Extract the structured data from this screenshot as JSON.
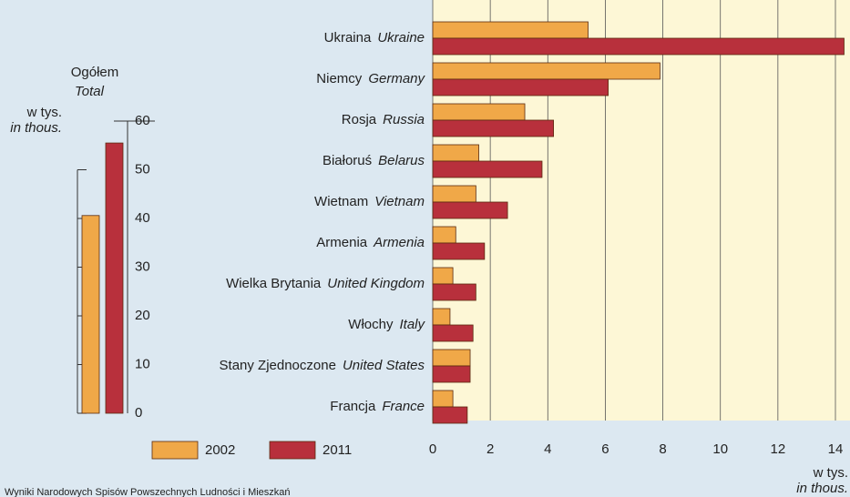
{
  "chart_data": [
    {
      "type": "bar",
      "title": "Ogółem",
      "subtitle": "Total",
      "y_label": "w tys.",
      "y_label_en": "in thous.",
      "categories": [
        null
      ],
      "series": [
        {
          "name": "2002",
          "color": "#f0a848",
          "values": [
            40.6
          ]
        },
        {
          "name": "2011",
          "color": "#b8303c",
          "values": [
            55.5
          ]
        }
      ],
      "ylim": [
        0,
        60
      ],
      "yticks": [
        0,
        10,
        20,
        30,
        40,
        50,
        60
      ]
    },
    {
      "type": "hbar",
      "x_label": "w tys.",
      "x_label_en": "in thous.",
      "categories": [
        "Ukraina",
        "Niemcy",
        "Rosja",
        "Białoruś",
        "Wietnam",
        "Armenia",
        "Wielka Brytania",
        "Włochy",
        "Stany Zjednoczone",
        "Francja"
      ],
      "categories_en": [
        "Ukraine",
        "Germany",
        "Russia",
        "Belarus",
        "Vietnam",
        "Armenia",
        "United Kingdom",
        "Italy",
        "United States",
        "France"
      ],
      "series": [
        {
          "name": "2002",
          "color": "#f0a848",
          "values": [
            5.4,
            7.9,
            3.2,
            1.6,
            1.5,
            0.8,
            0.7,
            0.6,
            1.3,
            0.7
          ]
        },
        {
          "name": "2011",
          "color": "#b8303c",
          "values": [
            14.3,
            6.1,
            4.2,
            3.8,
            2.6,
            1.8,
            1.5,
            1.4,
            1.3,
            1.2
          ]
        }
      ],
      "xlim": [
        0,
        14.5
      ],
      "xticks": [
        0,
        2,
        4,
        6,
        8,
        10,
        12,
        14
      ],
      "grid": true,
      "legend": "bottom-left",
      "source": "Wyniki Narodowych Spisów Powszechnych Ludności i Mieszkań"
    }
  ]
}
